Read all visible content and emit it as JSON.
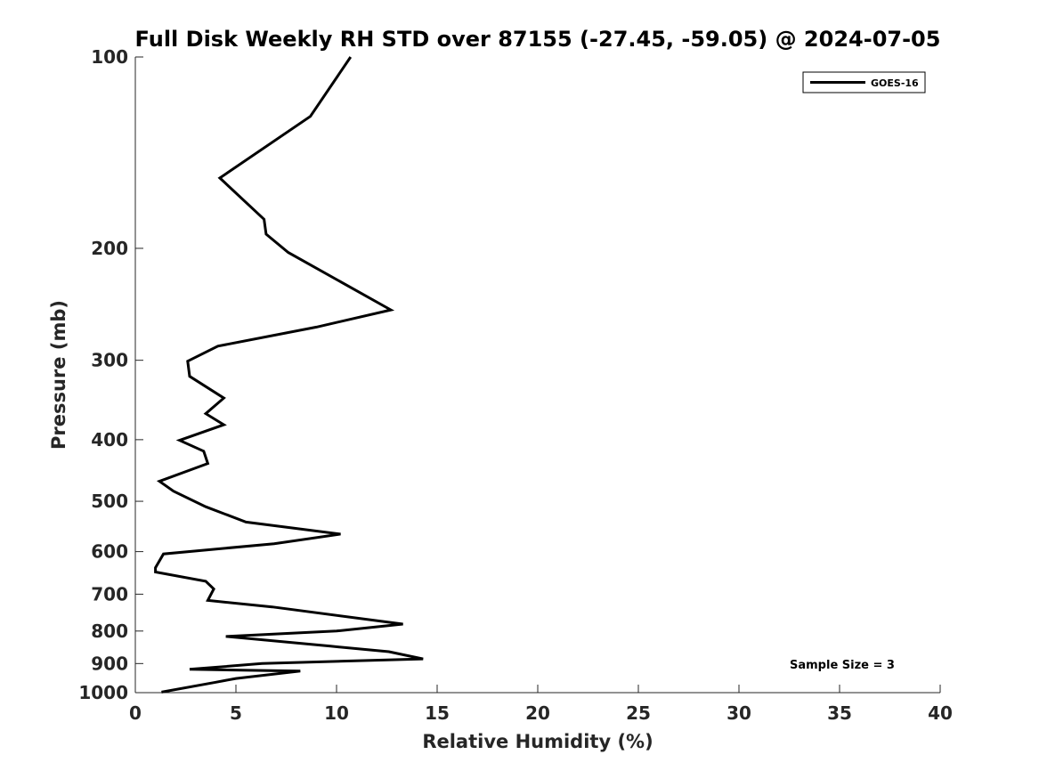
{
  "chart_data": {
    "type": "line",
    "title": "Full Disk Weekly RH STD over 87155 (-27.45, -59.05) @ 2024-07-05",
    "xlabel": "Relative Humidity (%)",
    "ylabel": "Pressure (mb)",
    "xlim": [
      0,
      40
    ],
    "ylim": [
      100,
      1000
    ],
    "yscale": "log",
    "y_reversed": true,
    "xticks": [
      0,
      5,
      10,
      15,
      20,
      25,
      30,
      35,
      40
    ],
    "yticks": [
      100,
      200,
      300,
      400,
      500,
      600,
      700,
      800,
      900,
      1000
    ],
    "legend_position": "top-right",
    "series": [
      {
        "name": "GOES-16",
        "color": "#000000",
        "points": [
          [
            10.7,
            100
          ],
          [
            8.7,
            124
          ],
          [
            4.2,
            155
          ],
          [
            6.4,
            180
          ],
          [
            6.5,
            190
          ],
          [
            7.6,
            203
          ],
          [
            12.7,
            250
          ],
          [
            9.0,
            266
          ],
          [
            4.1,
            285
          ],
          [
            2.6,
            301
          ],
          [
            2.7,
            318
          ],
          [
            4.4,
            344
          ],
          [
            3.5,
            364
          ],
          [
            4.4,
            379
          ],
          [
            2.2,
            401
          ],
          [
            3.4,
            417
          ],
          [
            3.6,
            436
          ],
          [
            1.2,
            465
          ],
          [
            1.9,
            482
          ],
          [
            3.5,
            510
          ],
          [
            5.5,
            539
          ],
          [
            10.2,
            563
          ],
          [
            6.9,
            583
          ],
          [
            1.4,
            605
          ],
          [
            1.0,
            636
          ],
          [
            1.0,
            646
          ],
          [
            3.5,
            668
          ],
          [
            3.9,
            687
          ],
          [
            3.6,
            716
          ],
          [
            6.8,
            733
          ],
          [
            13.3,
            780
          ],
          [
            10.0,
            800
          ],
          [
            4.5,
            816
          ],
          [
            9.7,
            845
          ],
          [
            12.6,
            862
          ],
          [
            14.3,
            885
          ],
          [
            6.3,
            900
          ],
          [
            2.7,
            919
          ],
          [
            8.2,
            925
          ],
          [
            5.0,
            950
          ],
          [
            4.0,
            963
          ],
          [
            1.3,
            998
          ]
        ]
      }
    ],
    "annotation": "Sample Size = 3"
  }
}
